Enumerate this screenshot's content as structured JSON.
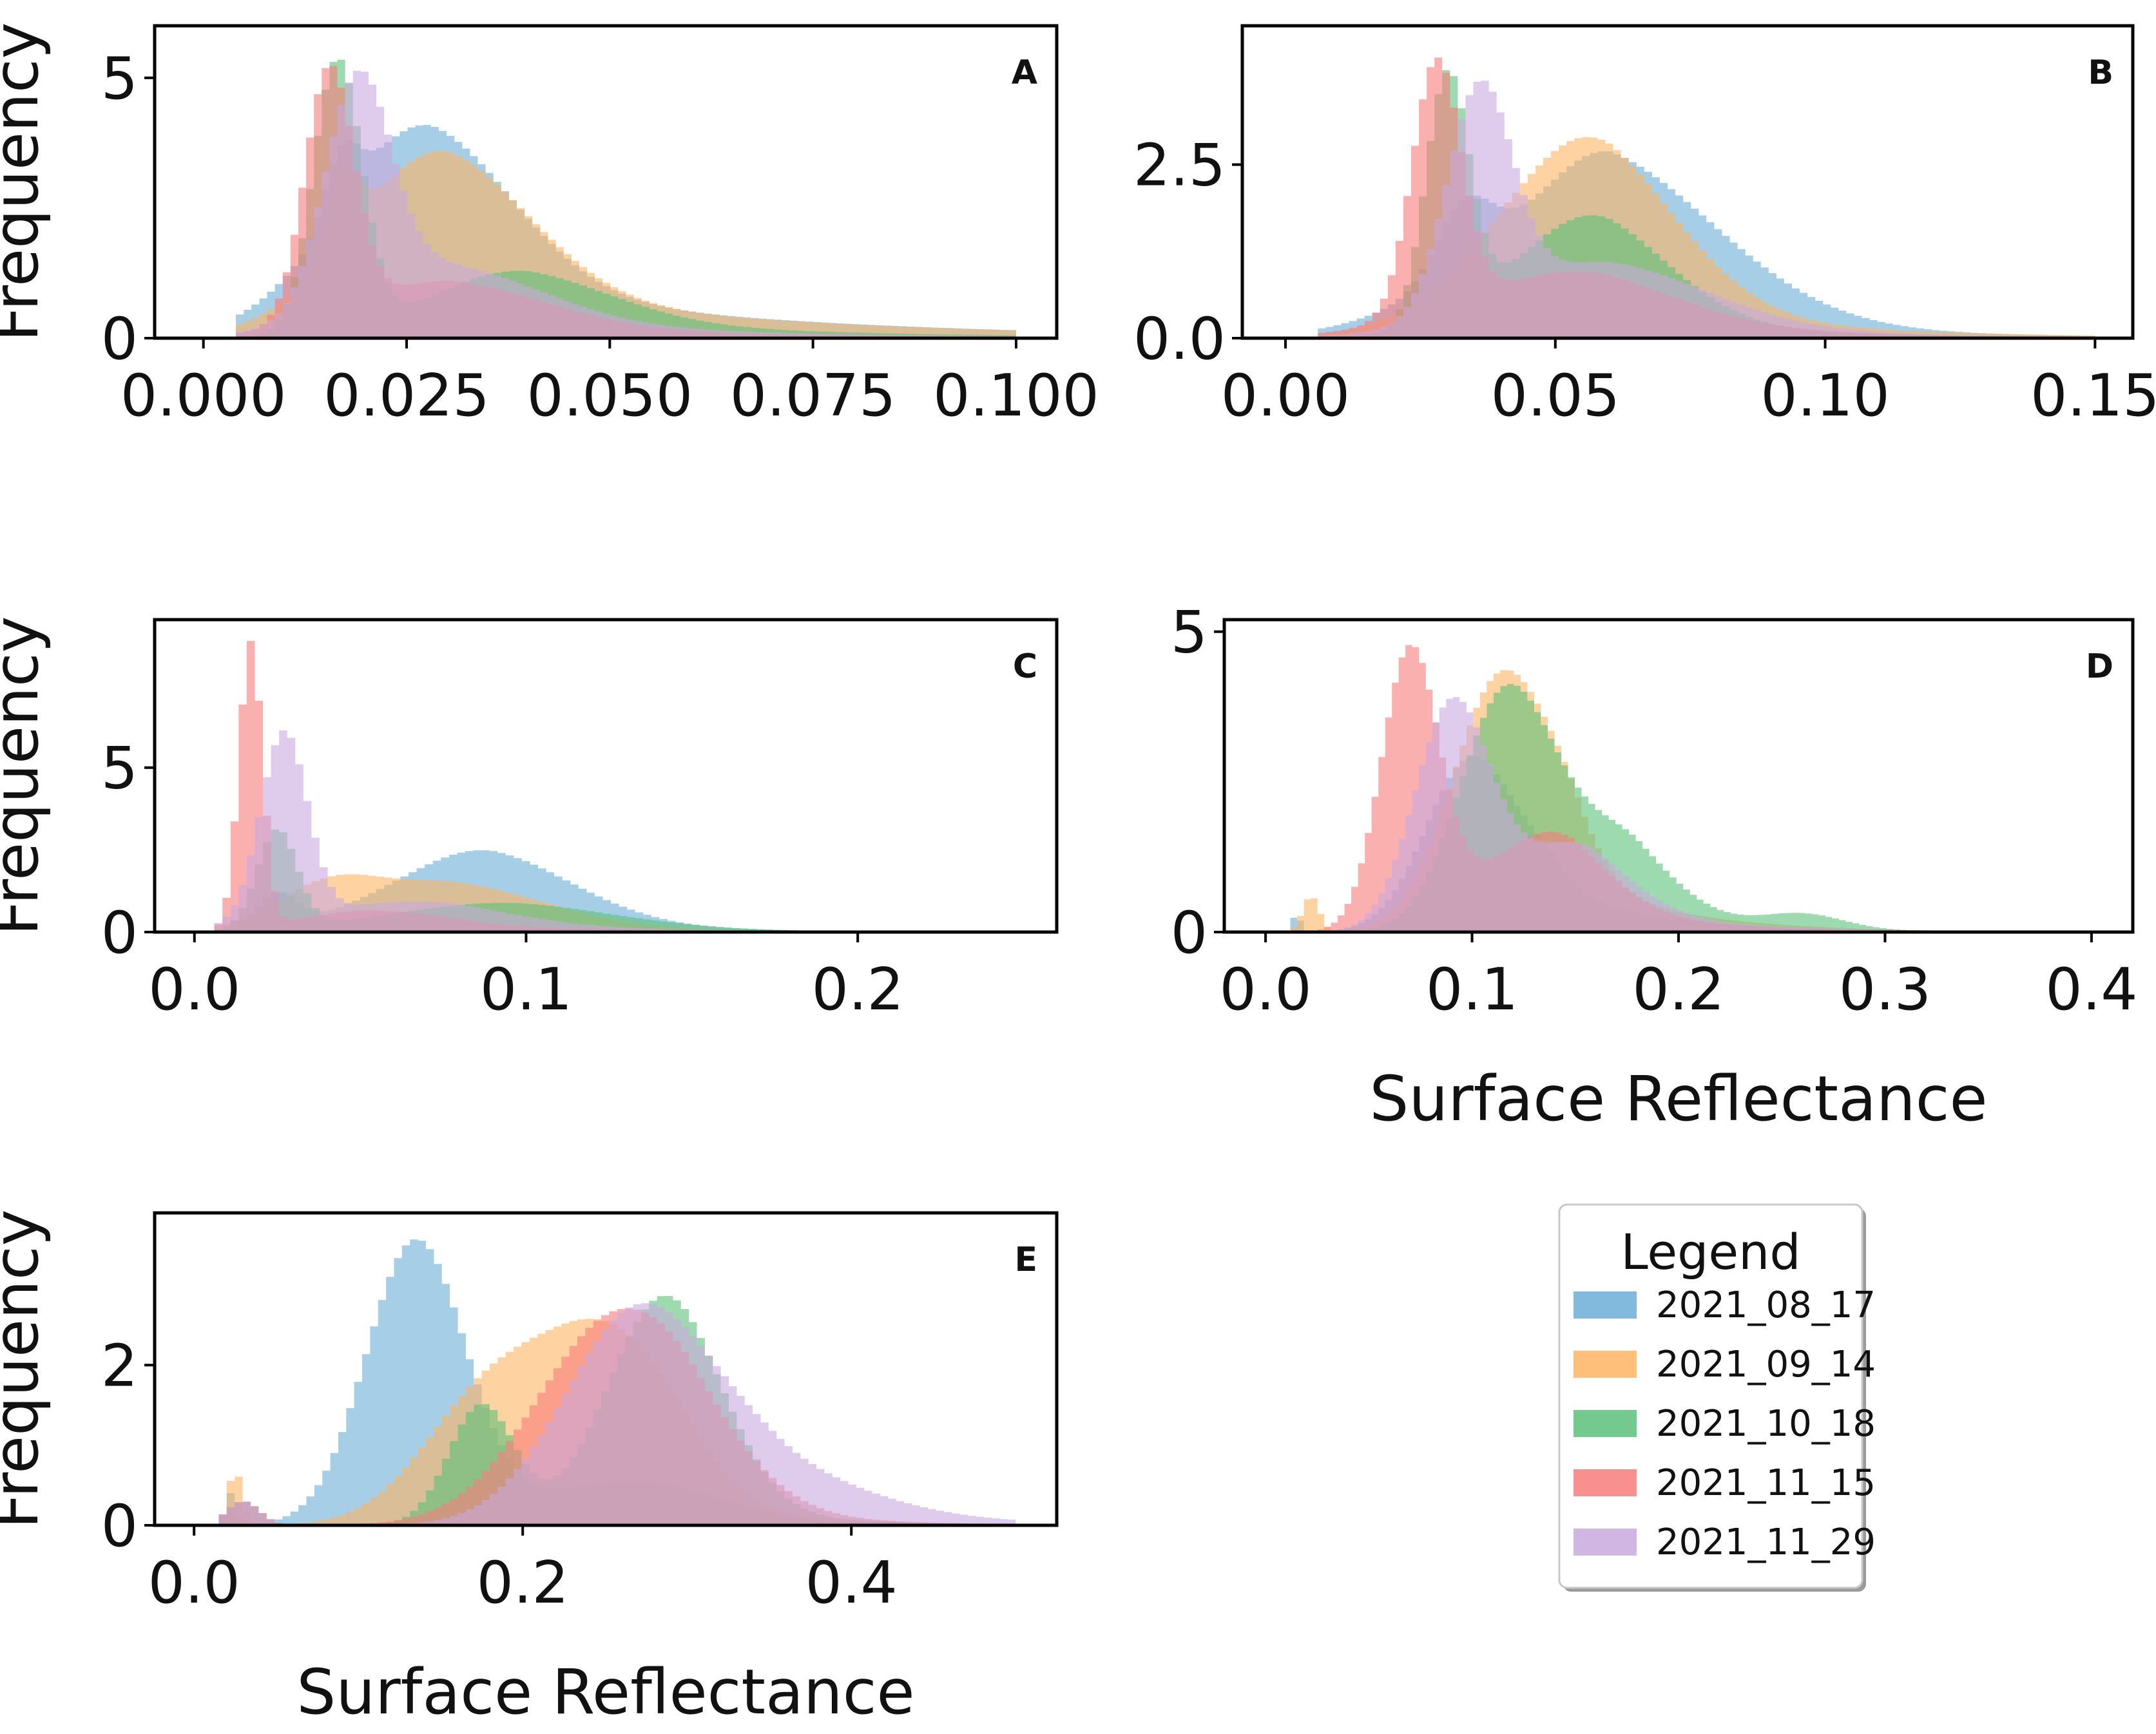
{
  "chart_data": {
    "type": "histogram",
    "legend": {
      "title": "Legend",
      "placement": "lower-right, outside plots",
      "entries": [
        {
          "name": "2021_08_17",
          "color": "#6BAED6"
        },
        {
          "name": "2021_09_14",
          "color": "#FDB462"
        },
        {
          "name": "2021_10_18",
          "color": "#5CC17A"
        },
        {
          "name": "2021_11_15",
          "color": "#F87C7C"
        },
        {
          "name": "2021_11_29",
          "color": "#C9A8DE"
        }
      ]
    },
    "panels": [
      {
        "id": "A",
        "letter": "A",
        "xlabel": "",
        "ylabel": "Frequency",
        "xlim": [
          -0.006,
          0.105
        ],
        "ylim": [
          0,
          6.0
        ],
        "xticks": [
          0.0,
          0.025,
          0.05,
          0.075,
          0.1
        ],
        "xtick_labels": [
          "0.000",
          "0.025",
          "0.050",
          "0.075",
          "0.100"
        ],
        "yticks": [
          0,
          5
        ],
        "ytick_labels": [
          "0",
          "5"
        ],
        "series": [
          {
            "name": "2021_08_17",
            "peaks": [
              [
                0.017,
                1.1,
                0.002
              ],
              [
                0.027,
                2.9,
                0.011
              ]
            ],
            "tail": [
              0.028,
              1.2,
              0.035
            ],
            "range": [
              0.004,
              0.1
            ]
          },
          {
            "name": "2021_09_14",
            "peaks": [
              [
                0.017,
                1.4,
                0.002
              ],
              [
                0.029,
                2.5,
                0.011
              ]
            ],
            "tail": [
              0.03,
              1.1,
              0.035
            ],
            "range": [
              0.004,
              0.1
            ]
          },
          {
            "name": "2021_10_18",
            "peaks": [
              [
                0.0165,
                5.2,
                0.003
              ],
              [
                0.038,
                0.9,
                0.012
              ]
            ],
            "tail": [
              0.04,
              0.4,
              0.03
            ],
            "range": [
              0.004,
              0.1
            ]
          },
          {
            "name": "2021_11_15",
            "peaks": [
              [
                0.0155,
                4.8,
                0.003
              ],
              [
                0.03,
                0.8,
                0.012
              ]
            ],
            "tail": [
              0.03,
              0.3,
              0.03
            ],
            "range": [
              0.004,
              0.1
            ]
          },
          {
            "name": "2021_11_29",
            "peaks": [
              [
                0.019,
                4.3,
                0.004
              ],
              [
                0.03,
                1.0,
                0.012
              ]
            ],
            "tail": [
              0.03,
              0.4,
              0.03
            ],
            "range": [
              0.004,
              0.1
            ]
          }
        ]
      },
      {
        "id": "B",
        "letter": "B",
        "xlabel": "",
        "ylabel": "",
        "xlim": [
          -0.008,
          0.157
        ],
        "ylim": [
          0,
          4.5
        ],
        "xticks": [
          0.0,
          0.05,
          0.1,
          0.15
        ],
        "xtick_labels": [
          "0.00",
          "0.05",
          "0.10",
          "0.15"
        ],
        "yticks": [
          0.0,
          2.5
        ],
        "ytick_labels": [
          "0.0",
          "2.5"
        ],
        "series": [
          {
            "name": "2021_08_17",
            "peaks": [
              [
                0.033,
                0.9,
                0.005
              ],
              [
                0.058,
                2.1,
                0.022
              ]
            ],
            "tail": [
              0.06,
              0.6,
              0.03
            ],
            "range": [
              0.006,
              0.15
            ]
          },
          {
            "name": "2021_09_14",
            "peaks": [
              [
                0.054,
                2.45,
                0.017
              ]
            ],
            "tail": [
              0.06,
              0.5,
              0.035
            ],
            "range": [
              0.006,
              0.15
            ]
          },
          {
            "name": "2021_10_18",
            "peaks": [
              [
                0.03,
                3.5,
                0.004
              ],
              [
                0.055,
                1.5,
                0.015
              ]
            ],
            "tail": [
              0.06,
              0.3,
              0.03
            ],
            "range": [
              0.006,
              0.15
            ]
          },
          {
            "name": "2021_11_15",
            "peaks": [
              [
                0.028,
                3.6,
                0.0045
              ],
              [
                0.05,
                0.8,
                0.02
              ]
            ],
            "tail": [
              0.06,
              0.2,
              0.04
            ],
            "range": [
              0.006,
              0.15
            ]
          },
          {
            "name": "2021_11_29",
            "peaks": [
              [
                0.036,
                3.2,
                0.006
              ],
              [
                0.058,
                0.9,
                0.02
              ]
            ],
            "tail": [
              0.06,
              0.2,
              0.04
            ],
            "range": [
              0.006,
              0.15
            ]
          }
        ]
      },
      {
        "id": "C",
        "letter": "C",
        "xlabel": "",
        "ylabel": "Frequency",
        "xlim": [
          -0.012,
          0.26
        ],
        "ylim": [
          0,
          9.5
        ],
        "xticks": [
          0.0,
          0.1,
          0.2
        ],
        "xtick_labels": [
          "0.0",
          "0.1",
          "0.2"
        ],
        "yticks": [
          0,
          5
        ],
        "ytick_labels": [
          "0",
          "5"
        ],
        "series": [
          {
            "name": "2021_08_17",
            "peaks": [
              [
                0.025,
                1.0,
                0.006
              ],
              [
                0.085,
                2.2,
                0.028
              ]
            ],
            "tail": [
              0.09,
              0.3,
              0.05
            ],
            "range": [
              0.006,
              0.25
            ]
          },
          {
            "name": "2021_09_14",
            "peaks": [
              [
                0.04,
                1.0,
                0.015
              ],
              [
                0.075,
                1.3,
                0.03
              ]
            ],
            "tail": [
              0.08,
              0.2,
              0.05
            ],
            "range": [
              0.006,
              0.25
            ]
          },
          {
            "name": "2021_10_18",
            "peaks": [
              [
                0.025,
                3.0,
                0.006
              ],
              [
                0.09,
                0.8,
                0.035
              ]
            ],
            "tail": [
              0.1,
              0.1,
              0.06
            ],
            "range": [
              0.006,
              0.25
            ]
          },
          {
            "name": "2021_11_15",
            "peaks": [
              [
                0.017,
                8.7,
                0.0035
              ],
              [
                0.05,
                0.6,
                0.02
              ]
            ],
            "tail": [
              0.08,
              0.2,
              0.06
            ],
            "range": [
              0.006,
              0.25
            ]
          },
          {
            "name": "2021_11_29",
            "peaks": [
              [
                0.027,
                5.7,
                0.007
              ],
              [
                0.06,
                0.8,
                0.03
              ]
            ],
            "tail": [
              0.08,
              0.2,
              0.06
            ],
            "range": [
              0.006,
              0.25
            ]
          }
        ]
      },
      {
        "id": "D",
        "letter": "D",
        "xlabel": "Surface Reflectance",
        "ylabel": "",
        "xlim": [
          -0.02,
          0.42
        ],
        "ylim": [
          0,
          5.2
        ],
        "xticks": [
          0.0,
          0.1,
          0.2,
          0.3,
          0.4
        ],
        "xtick_labels": [
          "0.0",
          "0.1",
          "0.2",
          "0.3",
          "0.4"
        ],
        "yticks": [
          0,
          5
        ],
        "ytick_labels": [
          "0",
          "5"
        ],
        "series": [
          {
            "name": "2021_08_17",
            "peaks": [
              [
                0.015,
                0.3,
                0.002
              ],
              [
                0.1,
                2.9,
                0.022
              ]
            ],
            "tail": [
              0.14,
              0.7,
              0.05
            ],
            "range": [
              0.012,
              0.34
            ]
          },
          {
            "name": "2021_09_14",
            "peaks": [
              [
                0.022,
                0.6,
                0.004
              ],
              [
                0.115,
                4.3,
                0.024
              ]
            ],
            "tail": [
              0.15,
              0.9,
              0.05
            ],
            "range": [
              0.012,
              0.34
            ]
          },
          {
            "name": "2021_10_18",
            "peaks": [
              [
                0.115,
                3.6,
                0.022
              ],
              [
                0.16,
                1.5,
                0.03
              ],
              [
                0.26,
                0.25,
                0.02
              ]
            ],
            "tail": [
              0.18,
              0.3,
              0.05
            ],
            "range": [
              0.012,
              0.34
            ]
          },
          {
            "name": "2021_11_15",
            "peaks": [
              [
                0.07,
                4.6,
                0.014
              ],
              [
                0.13,
                1.4,
                0.03
              ]
            ],
            "tail": [
              0.15,
              0.4,
              0.06
            ],
            "range": [
              0.012,
              0.34
            ]
          },
          {
            "name": "2021_11_29",
            "peaks": [
              [
                0.09,
                3.6,
                0.018
              ],
              [
                0.14,
                1.2,
                0.03
              ]
            ],
            "tail": [
              0.16,
              0.4,
              0.06
            ],
            "range": [
              0.012,
              0.34
            ]
          }
        ]
      },
      {
        "id": "E",
        "letter": "E",
        "xlabel": "Surface Reflectance",
        "ylabel": "Frequency",
        "xlim": [
          -0.024,
          0.525
        ],
        "ylim": [
          0,
          3.9
        ],
        "xticks": [
          0.0,
          0.2,
          0.4
        ],
        "xtick_labels": [
          "0.0",
          "0.2",
          "0.4"
        ],
        "yticks": [
          0,
          2
        ],
        "ytick_labels": [
          "0",
          "2"
        ],
        "series": [
          {
            "name": "2021_08_17",
            "peaks": [
              [
                0.022,
                0.4,
                0.003
              ],
              [
                0.135,
                3.55,
                0.03
              ],
              [
                0.27,
                0.5,
                0.05
              ]
            ],
            "tail": [
              0.2,
              0.1,
              0.1
            ],
            "range": [
              0.015,
              0.5
            ]
          },
          {
            "name": "2021_09_14",
            "peaks": [
              [
                0.025,
                0.7,
                0.004
              ],
              [
                0.18,
                1.6,
                0.04
              ],
              [
                0.255,
                2.2,
                0.04
              ]
            ],
            "tail": [
              0.3,
              0.2,
              0.08
            ],
            "range": [
              0.015,
              0.5
            ]
          },
          {
            "name": "2021_10_18",
            "peaks": [
              [
                0.03,
                0.3,
                0.01
              ],
              [
                0.175,
                1.5,
                0.02
              ],
              [
                0.285,
                2.7,
                0.035
              ]
            ],
            "tail": [
              0.3,
              0.2,
              0.08
            ],
            "range": [
              0.015,
              0.5
            ]
          },
          {
            "name": "2021_11_15",
            "peaks": [
              [
                0.03,
                0.3,
                0.01
              ],
              [
                0.26,
                2.65,
                0.05
              ]
            ],
            "tail": [
              0.3,
              0.2,
              0.08
            ],
            "range": [
              0.015,
              0.5
            ]
          },
          {
            "name": "2021_11_29",
            "peaks": [
              [
                0.03,
                0.3,
                0.01
              ],
              [
                0.27,
                2.55,
                0.045
              ],
              [
                0.35,
                0.5,
                0.06
              ]
            ],
            "tail": [
              0.35,
              0.2,
              0.1
            ],
            "range": [
              0.015,
              0.5
            ]
          }
        ]
      }
    ]
  }
}
